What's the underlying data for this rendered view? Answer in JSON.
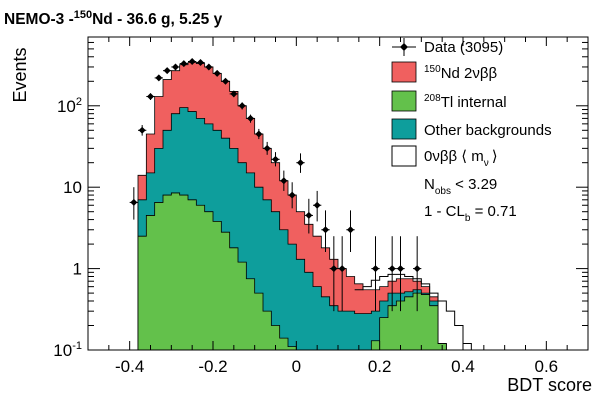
{
  "chart_data": {
    "type": "histogram",
    "title": {
      "prefix": "NEMO-3 -",
      "mass_number": "150",
      "element": "Nd - 36.6 g, 5.25 y"
    },
    "xlabel": "BDT score",
    "ylabel": "Events",
    "xlim": [
      -0.5,
      0.7
    ],
    "ylim": [
      0.1,
      700
    ],
    "yscale": "log",
    "x_ticks": [
      "-0.4",
      "-0.2",
      "0",
      "0.2",
      "0.4",
      "0.6"
    ],
    "y_ticks": [
      {
        "base": "10",
        "exp": "-1"
      },
      {
        "base": "1",
        "exp": ""
      },
      {
        "base": "10",
        "exp": ""
      },
      {
        "base": "10",
        "exp": "2"
      }
    ],
    "bin_width": 0.02,
    "bin_start": -0.4,
    "colors": {
      "nd2vbb": "#f0605f",
      "tl208": "#63c14b",
      "other": "#0e9e9c",
      "zero_nu": "#000000",
      "data": "#000000"
    },
    "legend": [
      {
        "key": "data",
        "label": "Data (3095)"
      },
      {
        "key": "nd2vbb",
        "label_sup": "150",
        "label": "Nd 2νββ"
      },
      {
        "key": "tl208",
        "label_sup": "208",
        "label": "Tl internal"
      },
      {
        "key": "other",
        "label": "Other backgrounds"
      },
      {
        "key": "zero_nu",
        "label": "0νββ ⟨ m",
        "label_sub": "ν",
        "label_end": "⟩"
      }
    ],
    "stats": [
      {
        "main": "N",
        "sub": "obs",
        "rest": " < 3.29"
      },
      {
        "main": "1 - CL",
        "sub": "b",
        "rest": " = 0.71"
      }
    ],
    "series": [
      {
        "name": "Tl internal",
        "key": "tl208",
        "values": [
          0.1,
          2.5,
          4.5,
          6.5,
          8,
          8.5,
          8,
          7,
          6,
          5,
          3.8,
          2.8,
          1.8,
          1.2,
          0.75,
          0.5,
          0.3,
          0.2,
          0.14,
          0.11,
          0.1,
          0.1,
          0.1,
          0.1,
          0.1,
          0.1,
          0.1,
          0.1,
          0.1,
          0.13,
          0.25,
          0.35,
          0.4,
          0.45,
          0.5,
          0.48,
          0.35,
          0.12
        ]
      },
      {
        "name": "Other backgrounds",
        "key": "other",
        "values": [
          0.1,
          7,
          15,
          30,
          50,
          80,
          95,
          85,
          70,
          60,
          50,
          40,
          30,
          20,
          15,
          10,
          7,
          5,
          3,
          2,
          1.3,
          0.9,
          0.6,
          0.45,
          0.35,
          0.3,
          0.3,
          0.28,
          0.28,
          0.3,
          0.4,
          0.5,
          0.5,
          0.52,
          0.55,
          0.5,
          0.4,
          0.12
        ]
      },
      {
        "name": "Nd 2νββ",
        "key": "nd2vbb",
        "values": [
          0.1,
          14,
          45,
          130,
          210,
          270,
          320,
          340,
          330,
          300,
          250,
          200,
          150,
          100,
          70,
          45,
          30,
          20,
          12,
          8,
          5,
          3.5,
          2.5,
          1.8,
          1.3,
          1.0,
          0.8,
          0.65,
          0.55,
          0.55,
          0.6,
          0.7,
          0.75,
          0.75,
          0.7,
          0.6,
          0.45,
          0.12
        ]
      },
      {
        "name": "0νββ",
        "key": "zero_nu",
        "x": [
          0.14,
          0.16,
          0.18,
          0.2,
          0.22,
          0.24,
          0.26,
          0.28,
          0.3,
          0.32,
          0.34,
          0.36,
          0.38,
          0.4,
          0.42
        ],
        "values": [
          0.55,
          0.6,
          0.72,
          0.8,
          0.85,
          0.85,
          0.8,
          0.75,
          0.65,
          0.5,
          0.4,
          0.3,
          0.2,
          0.12,
          0.1
        ]
      }
    ],
    "data_points": [
      {
        "x": -0.39,
        "y": 6.5,
        "lo": 4,
        "hi": 10
      },
      {
        "x": -0.37,
        "y": 50,
        "lo": 43,
        "hi": 58
      },
      {
        "x": -0.35,
        "y": 130,
        "lo": 118,
        "hi": 142
      },
      {
        "x": -0.33,
        "y": 220,
        "lo": 205,
        "hi": 236
      },
      {
        "x": -0.31,
        "y": 270,
        "lo": 254,
        "hi": 287
      },
      {
        "x": -0.29,
        "y": 300,
        "lo": 283,
        "hi": 318
      },
      {
        "x": -0.27,
        "y": 330,
        "lo": 312,
        "hi": 348
      },
      {
        "x": -0.25,
        "y": 350,
        "lo": 332,
        "hi": 369
      },
      {
        "x": -0.23,
        "y": 340,
        "lo": 322,
        "hi": 358
      },
      {
        "x": -0.21,
        "y": 300,
        "lo": 283,
        "hi": 318
      },
      {
        "x": -0.19,
        "y": 250,
        "lo": 234,
        "hi": 266
      },
      {
        "x": -0.17,
        "y": 200,
        "lo": 186,
        "hi": 214
      },
      {
        "x": -0.15,
        "y": 140,
        "lo": 128,
        "hi": 152
      },
      {
        "x": -0.13,
        "y": 100,
        "lo": 90,
        "hi": 110
      },
      {
        "x": -0.11,
        "y": 70,
        "lo": 62,
        "hi": 78
      },
      {
        "x": -0.09,
        "y": 45,
        "lo": 39,
        "hi": 52
      },
      {
        "x": -0.07,
        "y": 30,
        "lo": 25,
        "hi": 36
      },
      {
        "x": -0.05,
        "y": 22,
        "lo": 18,
        "hi": 27
      },
      {
        "x": -0.03,
        "y": 12,
        "lo": 9,
        "hi": 16
      },
      {
        "x": -0.01,
        "y": 8,
        "lo": 5.5,
        "hi": 11.5
      },
      {
        "x": 0.01,
        "y": 20,
        "lo": 15,
        "hi": 26
      },
      {
        "x": 0.03,
        "y": 4.5,
        "lo": 2.7,
        "hi": 7.2
      },
      {
        "x": 0.05,
        "y": 6,
        "lo": 3.8,
        "hi": 9
      },
      {
        "x": 0.07,
        "y": 3,
        "lo": 1.6,
        "hi": 5.2
      },
      {
        "x": 0.09,
        "y": 1.0,
        "lo": 0.3,
        "hi": 2.5
      },
      {
        "x": 0.11,
        "y": 1.0,
        "lo": 0.3,
        "hi": 2.5
      },
      {
        "x": 0.13,
        "y": 3,
        "lo": 1.6,
        "hi": 5.2
      },
      {
        "x": 0.19,
        "y": 1.0,
        "lo": 0.3,
        "hi": 2.5
      },
      {
        "x": 0.23,
        "y": 1.0,
        "lo": 0.3,
        "hi": 2.5
      },
      {
        "x": 0.25,
        "y": 1.0,
        "lo": 0.3,
        "hi": 2.5
      },
      {
        "x": 0.29,
        "y": 1.0,
        "lo": 0.3,
        "hi": 2.5
      }
    ]
  }
}
